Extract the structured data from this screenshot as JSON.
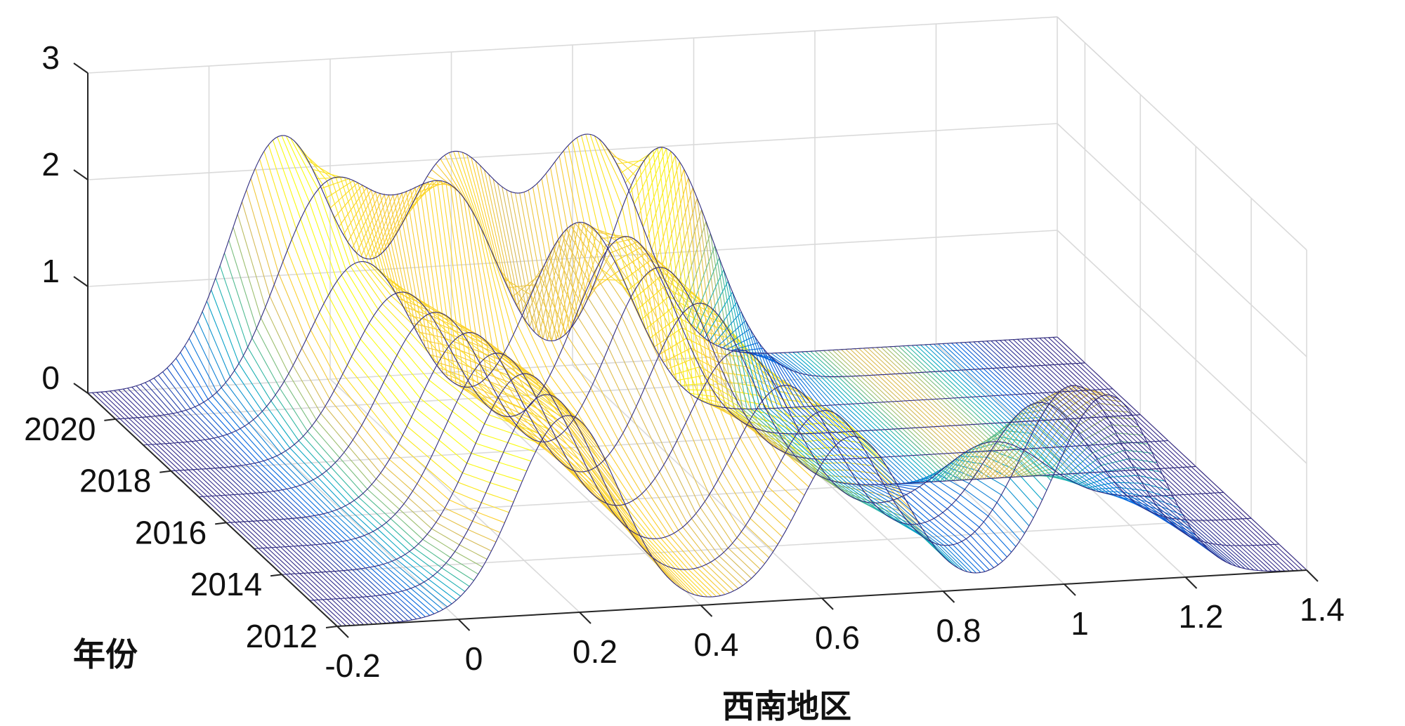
{
  "chart_data": {
    "type": "surface-3d-mesh",
    "xlabel": "西南地区",
    "ylabel": "年份",
    "zlabel": "",
    "xlim": [
      -0.2,
      1.4
    ],
    "ylim": [
      2012,
      2021
    ],
    "zlim": [
      0,
      3
    ],
    "x_ticks": [
      "-0.2",
      "0",
      "0.2",
      "0.4",
      "0.6",
      "0.8",
      "1",
      "1.2",
      "1.4"
    ],
    "y_ticks": [
      "2012",
      "2014",
      "2016",
      "2018",
      "2020"
    ],
    "z_ticks": [
      "0",
      "1",
      "2",
      "3"
    ],
    "grid": true,
    "colormap": "parula",
    "colormap_colors": [
      "#352a87",
      "#0363e1",
      "#1485d4",
      "#06a7c6",
      "#38b99e",
      "#92bf73",
      "#d9ba56",
      "#fcce2e",
      "#f9fb0e"
    ],
    "years": [
      2012,
      2013,
      2014,
      2015,
      2016,
      2017,
      2018,
      2019,
      2020,
      2021
    ],
    "density_peaks": [
      [
        {
          "mu": 0.18,
          "amp": 1.85
        },
        {
          "mu": 0.65,
          "amp": 1.5
        },
        {
          "mu": 1.07,
          "amp": 1.75
        }
      ],
      [
        {
          "mu": 0.19,
          "amp": 1.8
        },
        {
          "mu": 0.65,
          "amp": 1.5
        },
        {
          "mu": 1.06,
          "amp": 1.6
        }
      ],
      [
        {
          "mu": 0.2,
          "amp": 1.75
        },
        {
          "mu": 0.63,
          "amp": 1.5
        },
        {
          "mu": 1.05,
          "amp": 1.2
        }
      ],
      [
        {
          "mu": 0.2,
          "amp": 1.7
        },
        {
          "mu": 0.6,
          "amp": 1.6
        },
        {
          "mu": 1.02,
          "amp": 0.6
        }
      ],
      [
        {
          "mu": 0.2,
          "amp": 1.65
        },
        {
          "mu": 0.58,
          "amp": 1.8
        }
      ],
      [
        {
          "mu": 0.19,
          "amp": 1.6
        },
        {
          "mu": 0.56,
          "amp": 1.9
        }
      ],
      [
        {
          "mu": 0.18,
          "amp": 1.55
        },
        {
          "mu": 0.55,
          "amp": 1.95
        }
      ],
      [
        {
          "mu": 0.16,
          "amp": 1.6
        },
        {
          "mu": 0.52,
          "amp": 1.85
        }
      ],
      [
        {
          "mu": 0.15,
          "amp": 2.0
        },
        {
          "mu": 0.35,
          "amp": 1.9
        },
        {
          "mu": 0.7,
          "amp": 2.25
        }
      ],
      [
        {
          "mu": 0.12,
          "amp": 2.3
        },
        {
          "mu": 0.4,
          "amp": 2.0
        },
        {
          "mu": 0.63,
          "amp": 2.1
        }
      ]
    ],
    "peak_width": 0.085
  }
}
